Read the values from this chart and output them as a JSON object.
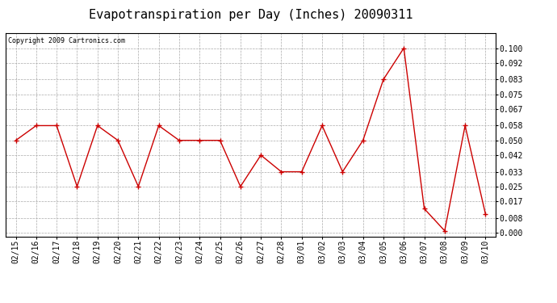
{
  "title": "Evapotranspiration per Day (Inches) 20090311",
  "copyright": "Copyright 2009 Cartronics.com",
  "x_labels": [
    "02/15",
    "02/16",
    "02/17",
    "02/18",
    "02/19",
    "02/20",
    "02/21",
    "02/22",
    "02/23",
    "02/24",
    "02/25",
    "02/26",
    "02/27",
    "02/28",
    "03/01",
    "03/02",
    "03/03",
    "03/04",
    "03/05",
    "03/06",
    "03/07",
    "03/08",
    "03/09",
    "03/10"
  ],
  "y_values": [
    0.05,
    0.058,
    0.058,
    0.025,
    0.058,
    0.05,
    0.025,
    0.058,
    0.05,
    0.05,
    0.05,
    0.025,
    0.042,
    0.033,
    0.033,
    0.058,
    0.033,
    0.05,
    0.083,
    0.1,
    0.013,
    0.001,
    0.058,
    0.01
  ],
  "line_color": "#cc0000",
  "marker": "+",
  "marker_size": 5,
  "bg_color": "#ffffff",
  "grid_color": "#aaaaaa",
  "ylim": [
    -0.002,
    0.108
  ],
  "yticks": [
    0.0,
    0.008,
    0.017,
    0.025,
    0.033,
    0.042,
    0.05,
    0.058,
    0.067,
    0.075,
    0.083,
    0.092,
    0.1
  ],
  "title_fontsize": 11,
  "copyright_fontsize": 6,
  "tick_fontsize": 7,
  "border_color": "#000000"
}
